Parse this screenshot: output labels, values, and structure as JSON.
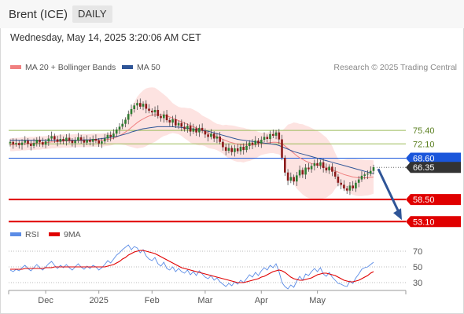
{
  "header": {
    "title": "Brent (ICE)",
    "timeframe": "DAILY"
  },
  "timestamp": "Wednesday, May 14, 2025 3:20:06 AM CET",
  "legend": {
    "ma20": {
      "label": "MA 20 + Bollinger Bands",
      "color": "#f08080"
    },
    "ma50": {
      "label": "MA 50",
      "color": "#2f5597"
    },
    "rsi": {
      "label": "RSI",
      "color": "#5b8ce6"
    },
    "rsi_ma": {
      "label": "9MA",
      "color": "#e00000"
    }
  },
  "credit": "Research © 2025 Trading Central",
  "chart_data": [
    {
      "type": "candlestick",
      "title": "Brent (ICE)",
      "x_tick_labels": [
        "Dec",
        "2025",
        "Feb",
        "Mar",
        "Apr",
        "May"
      ],
      "ylim": [
        52,
        90
      ],
      "levels": [
        {
          "value": 75.4,
          "label": "75.40",
          "kind": "resistance",
          "color": "#9bbb59"
        },
        {
          "value": 72.1,
          "label": "72.10",
          "kind": "resistance",
          "color": "#9bbb59"
        },
        {
          "value": 68.6,
          "label": "68.60",
          "kind": "pivot",
          "color": "#1a56db"
        },
        {
          "value": 66.35,
          "label": "66.35",
          "kind": "last",
          "color": "#333333"
        },
        {
          "value": 58.5,
          "label": "58.50",
          "kind": "support",
          "color": "#e00000"
        },
        {
          "value": 53.1,
          "label": "53.10",
          "kind": "support",
          "color": "#e00000"
        }
      ],
      "forecast_arrow": {
        "from": 66.35,
        "to": 53.1,
        "color": "#2f5597"
      },
      "close": [
        72.6,
        72.0,
        72.3,
        71.8,
        72.4,
        72.9,
        72.1,
        71.6,
        72.3,
        73.1,
        72.5,
        71.9,
        72.7,
        73.4,
        74.0,
        73.2,
        72.6,
        73.3,
        72.8,
        73.6,
        72.9,
        72.3,
        72.9,
        73.7,
        73.0,
        72.4,
        73.1,
        72.6,
        73.3,
        72.9,
        72.2,
        72.7,
        73.4,
        74.3,
        73.8,
        74.6,
        75.6,
        76.3,
        77.0,
        78.0,
        79.4,
        80.6,
        81.5,
        82.1,
        81.2,
        81.9,
        80.7,
        80.2,
        79.8,
        80.4,
        78.9,
        78.4,
        79.3,
        77.9,
        77.3,
        78.1,
        76.6,
        77.2,
        76.3,
        75.7,
        76.5,
        75.1,
        75.9,
        74.9,
        76.0,
        75.3,
        74.4,
        73.8,
        74.6,
        73.4,
        73.9,
        72.6,
        71.3,
        70.4,
        71.1,
        70.1,
        71.0,
        70.3,
        71.4,
        70.6,
        71.6,
        72.4,
        71.9,
        72.9,
        72.2,
        73.1,
        73.8,
        73.3,
        74.5,
        74.1,
        74.9,
        73.2,
        68.7,
        65.1,
        63.1,
        64.0,
        62.9,
        64.4,
        65.7,
        64.6,
        66.3,
        65.9,
        66.7,
        67.4,
        66.8,
        67.6,
        66.2,
        65.6,
        66.5,
        65.3,
        64.1,
        62.6,
        62.1,
        61.2,
        60.7,
        61.9,
        61.2,
        62.6,
        63.4,
        64.3,
        64.6,
        64.8,
        65.5,
        66.4
      ],
      "ma20": [
        71.9,
        71.9,
        72.0,
        72.0,
        72.1,
        72.1,
        72.2,
        72.2,
        72.2,
        72.3,
        72.3,
        72.4,
        72.4,
        72.5,
        72.6,
        72.6,
        72.7,
        72.7,
        72.8,
        72.8,
        72.8,
        72.8,
        72.9,
        72.9,
        72.9,
        72.9,
        72.9,
        72.9,
        73.0,
        73.0,
        73.0,
        73.0,
        73.1,
        73.2,
        73.3,
        73.5,
        73.8,
        74.1,
        74.5,
        75.0,
        75.5,
        76.1,
        76.7,
        77.3,
        77.8,
        78.2,
        78.6,
        78.9,
        79.1,
        79.2,
        79.2,
        79.2,
        79.1,
        78.9,
        78.7,
        78.4,
        78.1,
        77.8,
        77.5,
        77.2,
        76.9,
        76.6,
        76.3,
        76.0,
        75.7,
        75.4,
        75.1,
        74.7,
        74.4,
        74.1,
        73.8,
        73.5,
        73.2,
        72.9,
        72.6,
        72.4,
        72.2,
        72.0,
        71.9,
        71.8,
        71.8,
        71.8,
        71.8,
        71.9,
        72.0,
        72.1,
        72.2,
        72.3,
        72.4,
        72.5,
        72.5,
        72.4,
        72.1,
        71.6,
        71.0,
        70.4,
        69.8,
        69.2,
        68.7,
        68.3,
        67.9,
        67.6,
        67.3,
        67.1,
        66.9,
        66.7,
        66.5,
        66.3,
        66.1,
        65.8,
        65.5,
        65.2,
        64.9,
        64.6,
        64.4,
        64.2,
        64.0,
        63.9,
        63.8,
        63.8,
        63.8,
        63.8,
        63.9,
        64.0
      ],
      "ma50": [
        73.0,
        73.0,
        73.0,
        73.0,
        73.0,
        73.0,
        73.0,
        73.0,
        73.0,
        73.0,
        73.0,
        73.0,
        73.0,
        73.0,
        73.0,
        73.0,
        73.0,
        73.0,
        73.0,
        73.0,
        73.0,
        73.0,
        73.0,
        73.0,
        73.0,
        73.1,
        73.1,
        73.1,
        73.2,
        73.2,
        73.3,
        73.4,
        73.5,
        73.6,
        73.7,
        73.8,
        73.9,
        74.1,
        74.3,
        74.5,
        74.7,
        75.0,
        75.2,
        75.4,
        75.6,
        75.8,
        75.9,
        76.0,
        76.1,
        76.2,
        76.3,
        76.3,
        76.3,
        76.3,
        76.3,
        76.3,
        76.2,
        76.2,
        76.1,
        76.0,
        75.9,
        75.8,
        75.7,
        75.6,
        75.5,
        75.4,
        75.3,
        75.2,
        75.0,
        74.8,
        74.6,
        74.4,
        74.2,
        74.0,
        73.8,
        73.6,
        73.4,
        73.2,
        73.1,
        73.0,
        72.9,
        72.8,
        72.7,
        72.6,
        72.5,
        72.4,
        72.3,
        72.2,
        72.1,
        72.0,
        71.9,
        71.7,
        71.4,
        71.1,
        70.8,
        70.5,
        70.2,
        70.0,
        69.8,
        69.6,
        69.4,
        69.2,
        69.0,
        68.8,
        68.6,
        68.4,
        68.2,
        68.0,
        67.8,
        67.6,
        67.4,
        67.2,
        67.0,
        66.8,
        66.6,
        66.4,
        66.2,
        66.0,
        65.8,
        65.6,
        65.4,
        65.2,
        65.0,
        64.8
      ]
    },
    {
      "type": "line",
      "title": "RSI",
      "ylim": [
        20,
        80
      ],
      "y_tick_labels": [
        "70",
        "50",
        "30"
      ],
      "reference_lines": [
        70,
        50,
        30
      ],
      "series": [
        {
          "name": "RSI",
          "color": "#5b8ce6",
          "values": [
            46,
            44,
            47,
            45,
            49,
            52,
            48,
            45,
            49,
            53,
            49,
            46,
            50,
            54,
            57,
            52,
            48,
            52,
            49,
            53,
            49,
            46,
            50,
            54,
            50,
            47,
            51,
            48,
            52,
            50,
            46,
            49,
            53,
            58,
            55,
            60,
            65,
            68,
            72,
            75,
            78,
            72,
            76,
            74,
            68,
            72,
            64,
            60,
            58,
            62,
            54,
            51,
            56,
            48,
            46,
            50,
            44,
            48,
            44,
            42,
            46,
            40,
            44,
            39,
            45,
            41,
            37,
            35,
            39,
            33,
            36,
            31,
            28,
            25,
            29,
            26,
            31,
            28,
            33,
            30,
            35,
            40,
            37,
            43,
            39,
            45,
            49,
            46,
            52,
            49,
            54,
            44,
            30,
            25,
            22,
            27,
            24,
            32,
            38,
            33,
            41,
            39,
            44,
            48,
            44,
            49,
            41,
            38,
            43,
            37,
            33,
            29,
            28,
            26,
            25,
            32,
            29,
            36,
            41,
            47,
            49,
            50,
            53,
            56
          ]
        },
        {
          "name": "9MA",
          "color": "#e00000",
          "values": [
            47,
            47,
            47,
            47,
            47,
            48,
            48,
            48,
            48,
            48,
            48,
            48,
            49,
            49,
            49,
            50,
            50,
            50,
            50,
            50,
            50,
            50,
            50,
            50,
            50,
            50,
            50,
            50,
            50,
            50,
            50,
            50,
            50,
            51,
            52,
            53,
            55,
            57,
            60,
            62,
            65,
            67,
            69,
            70,
            71,
            71,
            70,
            69,
            68,
            67,
            65,
            63,
            61,
            59,
            57,
            55,
            53,
            51,
            49,
            48,
            47,
            46,
            45,
            44,
            43,
            42,
            41,
            40,
            39,
            38,
            37,
            36,
            35,
            34,
            33,
            32,
            31,
            30,
            30,
            30,
            31,
            32,
            33,
            34,
            35,
            37,
            38,
            40,
            42,
            44,
            45,
            46,
            45,
            43,
            40,
            37,
            35,
            34,
            33,
            33,
            34,
            35,
            36,
            38,
            40,
            41,
            42,
            42,
            41,
            40,
            39,
            37,
            35,
            33,
            32,
            31,
            31,
            32,
            33,
            35,
            37,
            39,
            42,
            44
          ]
        }
      ]
    }
  ]
}
